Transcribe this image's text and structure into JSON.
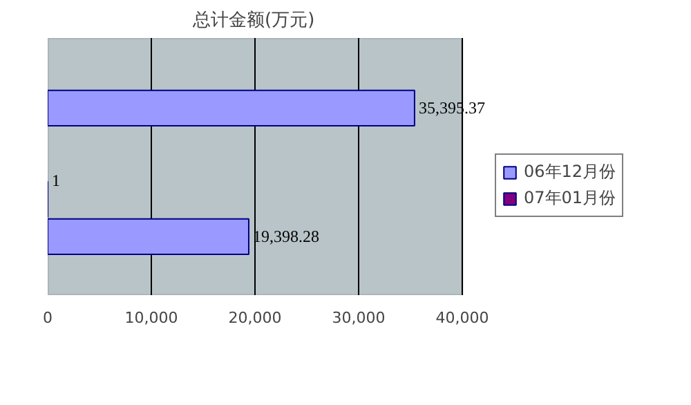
{
  "chart_data": {
    "type": "bar",
    "orientation": "horizontal",
    "title": "总计金额(万元)",
    "categories": [
      null,
      null
    ],
    "series": [
      {
        "name": "07年01月份",
        "color": "#800080",
        "values": [
          null,
          1
        ],
        "value_labels": [
          null,
          "1"
        ]
      },
      {
        "name": "06年12月份",
        "color": "#9999ff",
        "values": [
          35395.37,
          19398.28
        ],
        "value_labels": [
          "35,395.37",
          "19,398.28"
        ]
      }
    ],
    "xlim": [
      0,
      40000
    ],
    "xticks": [
      0,
      {
        "value": 10000,
        "label": "10,000"
      },
      {
        "value": 20000,
        "label": "20,000"
      },
      {
        "value": 30000,
        "label": "30,000"
      },
      {
        "value": 40000,
        "label": "40,000"
      }
    ],
    "grid": "x",
    "legend": "right"
  }
}
